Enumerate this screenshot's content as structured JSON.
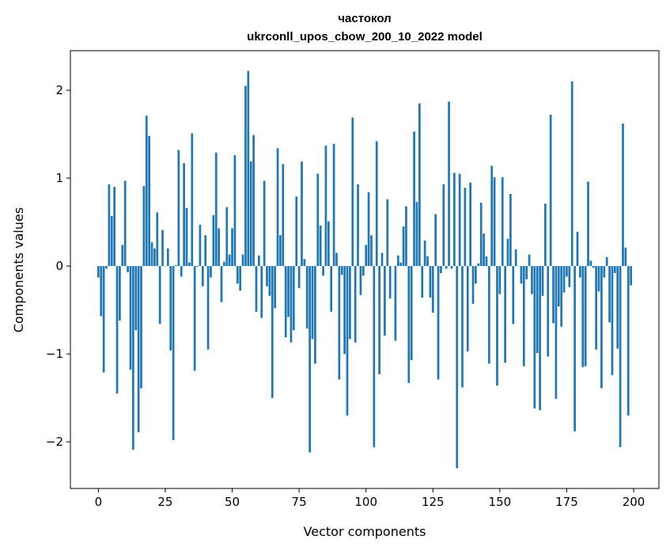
{
  "chart_data": {
    "type": "bar",
    "title_line1": "частокол",
    "title_line2": "ukrconll_upos_cbow_200_10_2022 model",
    "xlabel": "Vector components",
    "ylabel": "Components values",
    "xlim": [
      -10.45,
      209.45
    ],
    "ylim": [
      -2.53,
      2.45
    ],
    "xticks": [
      0,
      25,
      50,
      75,
      100,
      125,
      150,
      175,
      200
    ],
    "yticks": [
      -2,
      -1,
      0,
      1,
      2
    ],
    "ytick_labels": [
      "−2",
      "−1",
      "0",
      "1",
      "2"
    ],
    "grid": false,
    "bar_color": "#1f77b4",
    "values": [
      -0.13,
      -0.57,
      -1.21,
      -0.03,
      0.93,
      0.57,
      0.9,
      -1.45,
      -0.62,
      0.24,
      0.97,
      -0.07,
      -1.18,
      -2.09,
      -0.73,
      -1.89,
      -1.39,
      0.91,
      1.71,
      1.48,
      0.27,
      0.2,
      0.61,
      -0.66,
      0.41,
      0.0,
      0.2,
      -0.96,
      -1.98,
      0.01,
      1.32,
      -0.12,
      1.17,
      0.66,
      0.04,
      1.51,
      -1.19,
      -0.01,
      0.47,
      -0.23,
      0.35,
      -0.95,
      -0.13,
      0.58,
      1.29,
      0.43,
      -0.41,
      0.05,
      0.67,
      0.13,
      0.43,
      1.26,
      -0.2,
      -0.28,
      0.13,
      2.05,
      2.22,
      1.19,
      1.49,
      -0.52,
      0.12,
      -0.59,
      0.97,
      -0.23,
      -0.34,
      -1.5,
      -0.48,
      1.34,
      0.35,
      1.16,
      -0.81,
      -0.58,
      -0.87,
      -0.73,
      0.79,
      -0.25,
      1.19,
      0.08,
      -0.71,
      -2.12,
      -0.83,
      -1.11,
      1.05,
      0.46,
      -0.11,
      1.37,
      0.51,
      -0.52,
      1.39,
      0.15,
      -1.29,
      -0.1,
      -1.0,
      -1.7,
      -0.83,
      1.69,
      -0.87,
      0.93,
      -0.33,
      -0.11,
      0.24,
      0.84,
      0.35,
      -2.06,
      1.42,
      -1.23,
      0.15,
      -0.79,
      0.76,
      -0.37,
      0.0,
      -0.85,
      0.12,
      0.04,
      0.45,
      0.68,
      -1.33,
      -1.07,
      1.53,
      0.73,
      1.85,
      -0.36,
      0.29,
      0.11,
      -0.36,
      -0.53,
      0.59,
      -1.29,
      -0.08,
      0.93,
      -0.03,
      1.87,
      -0.03,
      1.06,
      -2.3,
      1.05,
      -1.38,
      0.89,
      -0.97,
      0.95,
      -0.43,
      -0.2,
      0.03,
      0.72,
      0.37,
      0.11,
      -1.11,
      1.14,
      1.01,
      -1.36,
      -0.32,
      1.01,
      -1.1,
      0.31,
      0.82,
      -0.66,
      0.19,
      0.0,
      -0.2,
      -1.14,
      -0.15,
      0.13,
      -0.32,
      -1.62,
      -0.99,
      -1.64,
      -0.34,
      0.71,
      -1.03,
      1.72,
      -0.65,
      -1.51,
      -0.46,
      -0.69,
      -0.3,
      -0.12,
      -0.24,
      2.1,
      -1.88,
      0.39,
      -0.13,
      -1.15,
      -1.14,
      0.96,
      0.06,
      -0.02,
      -0.95,
      -0.29,
      -1.39,
      -0.13,
      0.1,
      -0.64,
      -1.24,
      -0.08,
      -0.94,
      -2.06,
      1.62,
      0.21,
      -1.7,
      -0.22
    ]
  }
}
